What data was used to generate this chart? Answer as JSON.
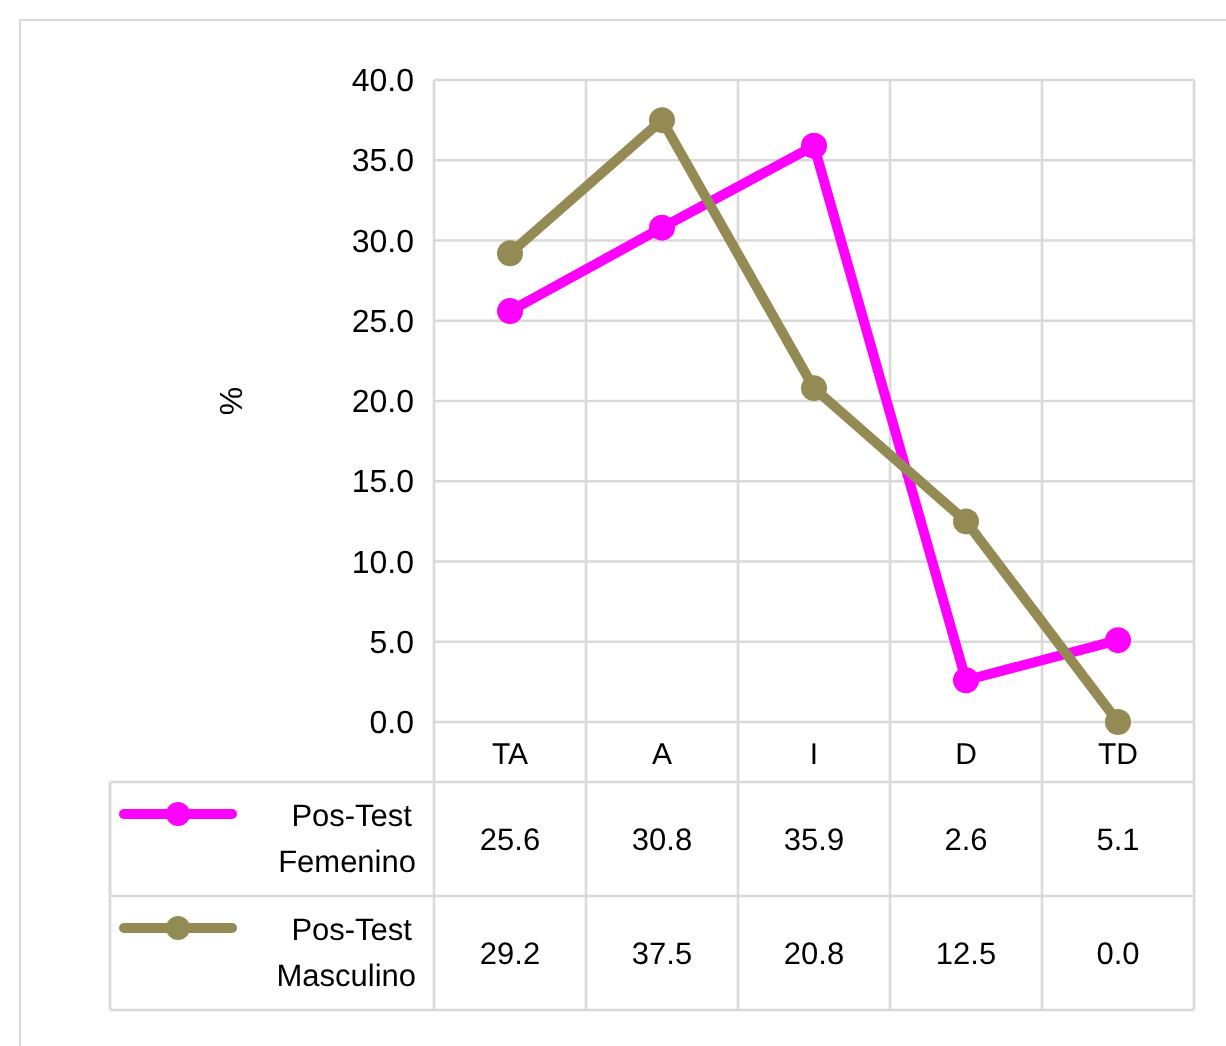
{
  "chart_data": {
    "type": "line",
    "ylabel": "%",
    "categories": [
      "TA",
      "A",
      "I",
      "D",
      "TD"
    ],
    "series": [
      {
        "name": "Pos-Test Femenino",
        "color": "#ff00ff",
        "values": [
          25.6,
          30.8,
          35.9,
          2.6,
          5.1
        ],
        "value_labels": [
          "25.6",
          "30.8",
          "35.9",
          "2.6",
          "5.1"
        ]
      },
      {
        "name": "Pos-Test Masculino",
        "color": "#948a54",
        "values": [
          29.2,
          37.5,
          20.8,
          12.5,
          0.0
        ],
        "value_labels": [
          "29.2",
          "37.5",
          "20.8",
          "12.5",
          "0.0"
        ]
      }
    ],
    "ylim": [
      0,
      40
    ],
    "yticks": [
      {
        "value": 0,
        "label": "0.0"
      },
      {
        "value": 5,
        "label": "5.0"
      },
      {
        "value": 10,
        "label": "10.0"
      },
      {
        "value": 15,
        "label": "15.0"
      },
      {
        "value": 20,
        "label": "20.0"
      },
      {
        "value": 25,
        "label": "25.0"
      },
      {
        "value": 30,
        "label": "30.0"
      },
      {
        "value": 35,
        "label": "35.0"
      },
      {
        "value": 40,
        "label": "40.0"
      }
    ],
    "grid": true,
    "legend": "bottom",
    "marker": "circle",
    "line_style": "solid"
  }
}
